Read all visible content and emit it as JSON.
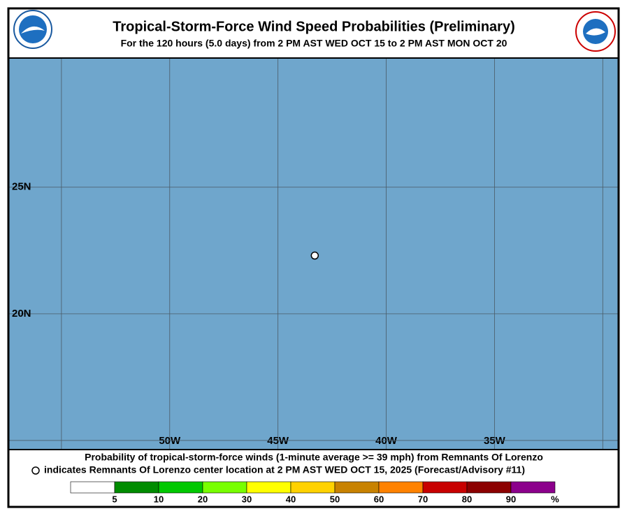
{
  "header": {
    "title": "Tropical-Storm-Force Wind Speed Probabilities (Preliminary)",
    "subtitle": "For the 120 hours (5.0 days) from 2 PM AST WED OCT 15 to 2 PM AST MON OCT 20"
  },
  "map": {
    "lon_range": [
      -57.45,
      -29.3
    ],
    "lat_range": [
      14.64,
      30.1
    ],
    "lon_lines": [
      {
        "value": -55,
        "label": null
      },
      {
        "value": -50,
        "label": "50W"
      },
      {
        "value": -45,
        "label": "45W"
      },
      {
        "value": -40,
        "label": "40W"
      },
      {
        "value": -35,
        "label": "35W"
      },
      {
        "value": -30,
        "label": null
      }
    ],
    "lat_lines": [
      {
        "value": 15,
        "label": null
      },
      {
        "value": 20,
        "label": "20N"
      },
      {
        "value": 25,
        "label": "25N"
      }
    ],
    "storm_center": {
      "lon": -43.3,
      "lat": 22.3
    }
  },
  "footer": {
    "line1": "Probability of tropical-storm-force winds (1-minute average >= 39 mph) from Remnants Of Lorenzo",
    "line2": "indicates Remnants Of Lorenzo center location at 2 PM AST WED OCT 15, 2025 (Forecast/Advisory #11)"
  },
  "legend": {
    "colors": [
      "#ffffff",
      "#008c00",
      "#00c800",
      "#78ff00",
      "#ffff00",
      "#ffd200",
      "#c88200",
      "#ff8200",
      "#c80000",
      "#8c0000",
      "#8c008c"
    ],
    "boundaries": [
      5,
      10,
      20,
      30,
      40,
      50,
      60,
      70,
      80,
      90
    ],
    "unit": "%"
  }
}
